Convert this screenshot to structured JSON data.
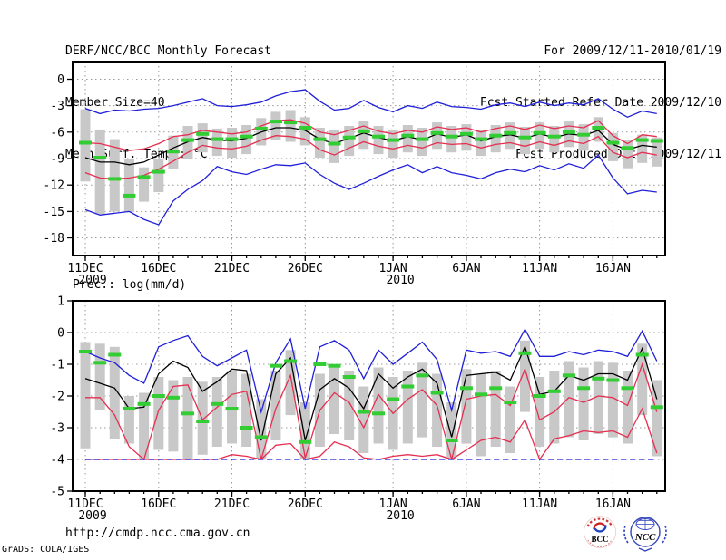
{
  "header": {
    "title": "DERF/NCC/BCC Monthly Forecast",
    "member_size": "Member Size=40",
    "variable_label": "Mean Surf. Temp.: °C",
    "for_range": "For 2009/12/11-2010/01/19",
    "fcst_refer_date": "Fcst Started Refer Date 2009/12/10",
    "fcst_produced_date": "Fcst Produced Date 2009/12/11"
  },
  "footer": {
    "url": "http://cmdp.ncc.cma.gov.cn",
    "grads_credit": "GrADS: COLA/IGES",
    "logos": {
      "bcc_label": "BCC",
      "ncc_label": "NCC"
    }
  },
  "palette": {
    "blue": "#2020d8",
    "red": "#e62e50",
    "black": "#000000",
    "green": "#32cd32",
    "bar": "#c8c8c8",
    "grid": "#999999",
    "logo_navy": "#1a2a7a",
    "logo_blue": "#3344bb",
    "logo_red": "#cc2222"
  },
  "chart_data": [
    {
      "type": "line",
      "title": "Mean Surf. Temp.: °C",
      "ylabel": "",
      "ylim": [
        -20,
        2
      ],
      "yticks": [
        0,
        -3,
        -6,
        -9,
        -12,
        -15,
        -18
      ],
      "grid": true,
      "n_days": 40,
      "xticks": [
        {
          "day": 0,
          "label": "11DEC",
          "year": "2009"
        },
        {
          "day": 5,
          "label": "16DEC"
        },
        {
          "day": 10,
          "label": "21DEC"
        },
        {
          "day": 15,
          "label": "26DEC"
        },
        {
          "day": 21,
          "label": "1JAN",
          "year": "2010"
        },
        {
          "day": 26,
          "label": "6JAN"
        },
        {
          "day": 31,
          "label": "11JAN"
        },
        {
          "day": 36,
          "label": "16JAN"
        }
      ],
      "series": [
        {
          "name": "upper-blue-envelope",
          "color_key": "blue",
          "dashed": false,
          "values": [
            -3.3,
            -3.9,
            -3.5,
            -3.6,
            -3.4,
            -3.3,
            -3.0,
            -2.6,
            -2.2,
            -3.0,
            -3.1,
            -2.9,
            -2.6,
            -1.9,
            -1.4,
            -1.2,
            -2.5,
            -3.5,
            -3.3,
            -2.4,
            -3.2,
            -3.7,
            -3.0,
            -3.3,
            -2.6,
            -3.1,
            -3.2,
            -3.4,
            -2.9,
            -2.7,
            -3.1,
            -2.6,
            -3.0,
            -2.7,
            -2.9,
            -2.2,
            -3.4,
            -4.3,
            -3.6,
            -3.9
          ]
        },
        {
          "name": "upper-red-line",
          "color_key": "red",
          "dashed": false,
          "values": [
            -7.2,
            -7.3,
            -7.7,
            -8.1,
            -7.9,
            -7.3,
            -6.5,
            -6.3,
            -5.8,
            -6.0,
            -6.2,
            -6.0,
            -5.3,
            -4.7,
            -4.6,
            -5.0,
            -6.0,
            -6.3,
            -5.8,
            -5.3,
            -5.9,
            -6.2,
            -5.8,
            -6.0,
            -5.4,
            -5.7,
            -5.5,
            -6.0,
            -5.6,
            -5.3,
            -5.7,
            -5.2,
            -5.6,
            -5.3,
            -5.5,
            -4.7,
            -6.4,
            -7.3,
            -6.3,
            -6.5
          ]
        },
        {
          "name": "ensemble-mean-black",
          "color_key": "black",
          "dashed": false,
          "values": [
            -8.9,
            -9.4,
            -9.4,
            -9.7,
            -9.4,
            -8.6,
            -7.8,
            -7.1,
            -6.6,
            -6.9,
            -7.0,
            -6.7,
            -6.0,
            -5.5,
            -5.5,
            -5.8,
            -6.8,
            -7.3,
            -6.7,
            -6.1,
            -6.6,
            -7.0,
            -6.5,
            -6.9,
            -6.2,
            -6.6,
            -6.3,
            -7.0,
            -6.5,
            -6.3,
            -6.7,
            -6.2,
            -6.6,
            -6.2,
            -6.4,
            -5.8,
            -7.4,
            -8.0,
            -7.5,
            -7.7
          ]
        },
        {
          "name": "lower-red-line",
          "color_key": "red",
          "dashed": false,
          "values": [
            -10.6,
            -11.2,
            -11.3,
            -11.2,
            -10.9,
            -10.2,
            -9.3,
            -8.3,
            -7.5,
            -7.8,
            -7.9,
            -7.6,
            -6.9,
            -6.4,
            -6.5,
            -6.8,
            -8.0,
            -8.6,
            -7.8,
            -7.1,
            -7.6,
            -7.9,
            -7.5,
            -7.8,
            -7.2,
            -7.4,
            -7.3,
            -7.8,
            -7.4,
            -7.2,
            -7.6,
            -7.1,
            -7.5,
            -7.0,
            -7.3,
            -6.5,
            -8.3,
            -8.9,
            -8.3,
            -8.6
          ]
        },
        {
          "name": "lower-blue-envelope",
          "color_key": "blue",
          "dashed": false,
          "values": [
            -14.8,
            -15.4,
            -15.2,
            -15.0,
            -15.9,
            -16.5,
            -13.8,
            -12.5,
            -11.5,
            -9.9,
            -10.5,
            -10.8,
            -10.2,
            -9.7,
            -9.8,
            -9.5,
            -10.8,
            -11.8,
            -12.5,
            -11.8,
            -11.0,
            -10.3,
            -9.7,
            -10.6,
            -9.9,
            -10.6,
            -10.9,
            -11.3,
            -10.6,
            -10.2,
            -10.5,
            -9.8,
            -10.3,
            -9.6,
            -10.1,
            -8.6,
            -11.2,
            -13.0,
            -12.6,
            -12.8
          ]
        }
      ],
      "median": {
        "color_key": "green",
        "values": [
          -7.2,
          -8.9,
          -11.3,
          -13.2,
          -11.1,
          -10.5,
          -8.2,
          -6.9,
          -6.2,
          -6.8,
          -6.8,
          -6.5,
          -5.6,
          -4.8,
          -4.9,
          -5.5,
          -6.8,
          -7.3,
          -6.6,
          -5.9,
          -6.5,
          -6.9,
          -6.4,
          -6.8,
          -6.1,
          -6.5,
          -6.2,
          -6.8,
          -6.4,
          -6.1,
          -6.6,
          -6.1,
          -6.5,
          -6.0,
          -6.3,
          -5.5,
          -7.2,
          -7.8,
          -6.9,
          -7.0
        ]
      },
      "bars": {
        "top": [
          -3.4,
          -5.7,
          -6.8,
          -9.0,
          -10.0,
          -9.0,
          -6.4,
          -5.3,
          -5.0,
          -5.6,
          -5.5,
          -5.2,
          -4.4,
          -3.7,
          -3.5,
          -4.3,
          -5.5,
          -5.8,
          -5.3,
          -4.7,
          -5.3,
          -5.7,
          -5.2,
          -5.5,
          -4.9,
          -5.3,
          -5.1,
          -5.7,
          -5.2,
          -4.9,
          -5.4,
          -4.9,
          -5.3,
          -4.8,
          -5.1,
          -4.3,
          -6.1,
          -6.9,
          -6.3,
          -6.6
        ],
        "bottom": [
          -11.6,
          -15.3,
          -15.0,
          -15.1,
          -13.9,
          -12.8,
          -10.2,
          -9.1,
          -8.3,
          -8.7,
          -8.9,
          -8.5,
          -7.5,
          -6.9,
          -7.1,
          -7.5,
          -8.9,
          -9.5,
          -8.7,
          -7.9,
          -8.5,
          -8.9,
          -8.3,
          -8.7,
          -7.9,
          -8.3,
          -8.1,
          -8.7,
          -8.3,
          -7.9,
          -8.5,
          -7.9,
          -8.3,
          -7.7,
          -8.1,
          -7.1,
          -9.3,
          -10.1,
          -9.5,
          -9.9
        ]
      }
    },
    {
      "type": "line",
      "title": "Prec.: log(mm/d)",
      "ylabel": "",
      "ylim": [
        -5,
        1
      ],
      "yticks": [
        1,
        0,
        -1,
        -2,
        -3,
        -4,
        -5
      ],
      "grid": true,
      "n_days": 40,
      "xticks": [
        {
          "day": 0,
          "label": "11DEC",
          "year": "2009"
        },
        {
          "day": 5,
          "label": "16DEC"
        },
        {
          "day": 10,
          "label": "21DEC"
        },
        {
          "day": 15,
          "label": "26DEC"
        },
        {
          "day": 21,
          "label": "1JAN",
          "year": "2010"
        },
        {
          "day": 26,
          "label": "6JAN"
        },
        {
          "day": 31,
          "label": "11JAN"
        },
        {
          "day": 36,
          "label": "16JAN"
        }
      ],
      "series": [
        {
          "name": "upper-blue-envelope",
          "color_key": "blue",
          "dashed": false,
          "values": [
            -0.6,
            -0.8,
            -0.95,
            -1.35,
            -1.6,
            -0.45,
            -0.25,
            -0.1,
            -0.75,
            -1.05,
            -0.8,
            -0.55,
            -2.5,
            -0.95,
            -0.2,
            -2.4,
            -0.45,
            -0.25,
            -0.55,
            -1.45,
            -0.55,
            -1.0,
            -0.65,
            -0.3,
            -0.85,
            -2.45,
            -0.55,
            -0.65,
            -0.6,
            -0.75,
            0.1,
            -0.75,
            -0.75,
            -0.6,
            -0.7,
            -0.55,
            -0.6,
            -0.75,
            0.05,
            -0.9
          ]
        },
        {
          "name": "upper-red-line",
          "color_key": "red",
          "dashed": false,
          "values": [
            -2.05,
            -2.05,
            -2.6,
            -3.6,
            -4.0,
            -2.45,
            -1.7,
            -1.65,
            -2.75,
            -2.35,
            -1.95,
            -1.85,
            -4.0,
            -2.4,
            -1.35,
            -3.95,
            -2.45,
            -1.9,
            -2.2,
            -3.0,
            -1.95,
            -2.55,
            -2.1,
            -1.8,
            -2.3,
            -4.0,
            -2.1,
            -2.0,
            -1.95,
            -2.3,
            -1.15,
            -2.75,
            -2.5,
            -2.05,
            -2.2,
            -2.0,
            -2.05,
            -2.3,
            -1.0,
            -2.5
          ]
        },
        {
          "name": "ensemble-mean-black",
          "color_key": "black",
          "dashed": false,
          "values": [
            -1.45,
            -1.6,
            -1.75,
            -2.4,
            -2.35,
            -1.3,
            -0.9,
            -1.1,
            -1.85,
            -1.55,
            -1.15,
            -1.2,
            -3.4,
            -1.3,
            -0.8,
            -3.4,
            -1.8,
            -1.45,
            -1.75,
            -2.4,
            -1.3,
            -1.75,
            -1.4,
            -1.15,
            -1.6,
            -3.3,
            -1.35,
            -1.3,
            -1.25,
            -1.5,
            -0.45,
            -1.95,
            -1.85,
            -1.35,
            -1.5,
            -1.3,
            -1.3,
            -1.5,
            -0.5,
            -2.1
          ]
        },
        {
          "name": "lower-red-line",
          "color_key": "red",
          "dashed": false,
          "values": [
            -4.0,
            -4.0,
            -4.0,
            -4.0,
            -4.0,
            -4.0,
            -4.0,
            -4.0,
            -4.0,
            -4.0,
            -3.85,
            -3.9,
            -4.0,
            -3.55,
            -3.5,
            -4.0,
            -3.9,
            -3.45,
            -3.6,
            -3.95,
            -4.0,
            -3.9,
            -3.85,
            -3.9,
            -3.85,
            -4.0,
            -3.7,
            -3.4,
            -3.3,
            -3.45,
            -2.75,
            -4.0,
            -3.35,
            -3.25,
            -3.1,
            -3.15,
            -3.1,
            -3.3,
            -2.4,
            -3.8
          ]
        },
        {
          "name": "lower-blue-envelope",
          "color_key": "blue",
          "dashed": true,
          "values": [
            -4.0,
            -4.0,
            -4.0,
            -4.0,
            -4.0,
            -4.0,
            -4.0,
            -4.0,
            -4.0,
            -4.0,
            -4.0,
            -4.0,
            -4.0,
            -4.0,
            -4.0,
            -4.0,
            -4.0,
            -4.0,
            -4.0,
            -4.0,
            -4.0,
            -4.0,
            -4.0,
            -4.0,
            -4.0,
            -4.0,
            -4.0,
            -4.0,
            -4.0,
            -4.0,
            -4.0,
            -4.0,
            -4.0,
            -4.0,
            -4.0,
            -4.0,
            -4.0,
            -4.0,
            -4.0,
            -4.0
          ]
        }
      ],
      "median": {
        "color_key": "green",
        "values": [
          -0.6,
          -0.95,
          -0.7,
          -2.4,
          -2.25,
          -2.0,
          -2.05,
          -2.55,
          -2.8,
          -2.25,
          -2.4,
          -3.0,
          -3.3,
          -1.05,
          -0.9,
          -3.45,
          -1.0,
          -1.05,
          -1.4,
          -2.5,
          -2.55,
          -2.1,
          -1.7,
          -1.35,
          -1.9,
          -3.4,
          -1.75,
          -1.95,
          -1.75,
          -2.2,
          -0.65,
          -2.0,
          -1.85,
          -1.35,
          -1.75,
          -1.45,
          -1.5,
          -1.75,
          -0.7,
          -2.35
        ]
      },
      "bars": {
        "top": [
          -0.3,
          -0.35,
          -0.45,
          -2.0,
          -1.9,
          -1.4,
          -1.5,
          -1.4,
          -1.55,
          -1.4,
          -1.2,
          -1.3,
          -2.1,
          -1.2,
          -0.55,
          -2.2,
          -1.3,
          -1.0,
          -1.2,
          -1.7,
          -1.1,
          -1.4,
          -1.2,
          -0.95,
          -1.3,
          -2.2,
          -1.15,
          -1.3,
          -1.2,
          -1.7,
          -0.25,
          -1.4,
          -1.2,
          -0.9,
          -1.1,
          -0.9,
          -0.95,
          -1.2,
          -0.35,
          -1.5
        ],
        "bottom": [
          -3.65,
          -2.45,
          -3.35,
          -3.5,
          -4.0,
          -3.7,
          -3.75,
          -4.0,
          -3.85,
          -3.6,
          -3.5,
          -3.6,
          -4.0,
          -3.4,
          -2.6,
          -4.0,
          -3.6,
          -3.2,
          -3.4,
          -3.8,
          -3.5,
          -3.7,
          -3.5,
          -3.3,
          -3.6,
          -4.0,
          -3.5,
          -3.9,
          -3.6,
          -3.8,
          -2.5,
          -3.6,
          -3.5,
          -3.3,
          -3.4,
          -3.2,
          -3.3,
          -3.5,
          -2.6,
          -3.9
        ]
      }
    }
  ]
}
